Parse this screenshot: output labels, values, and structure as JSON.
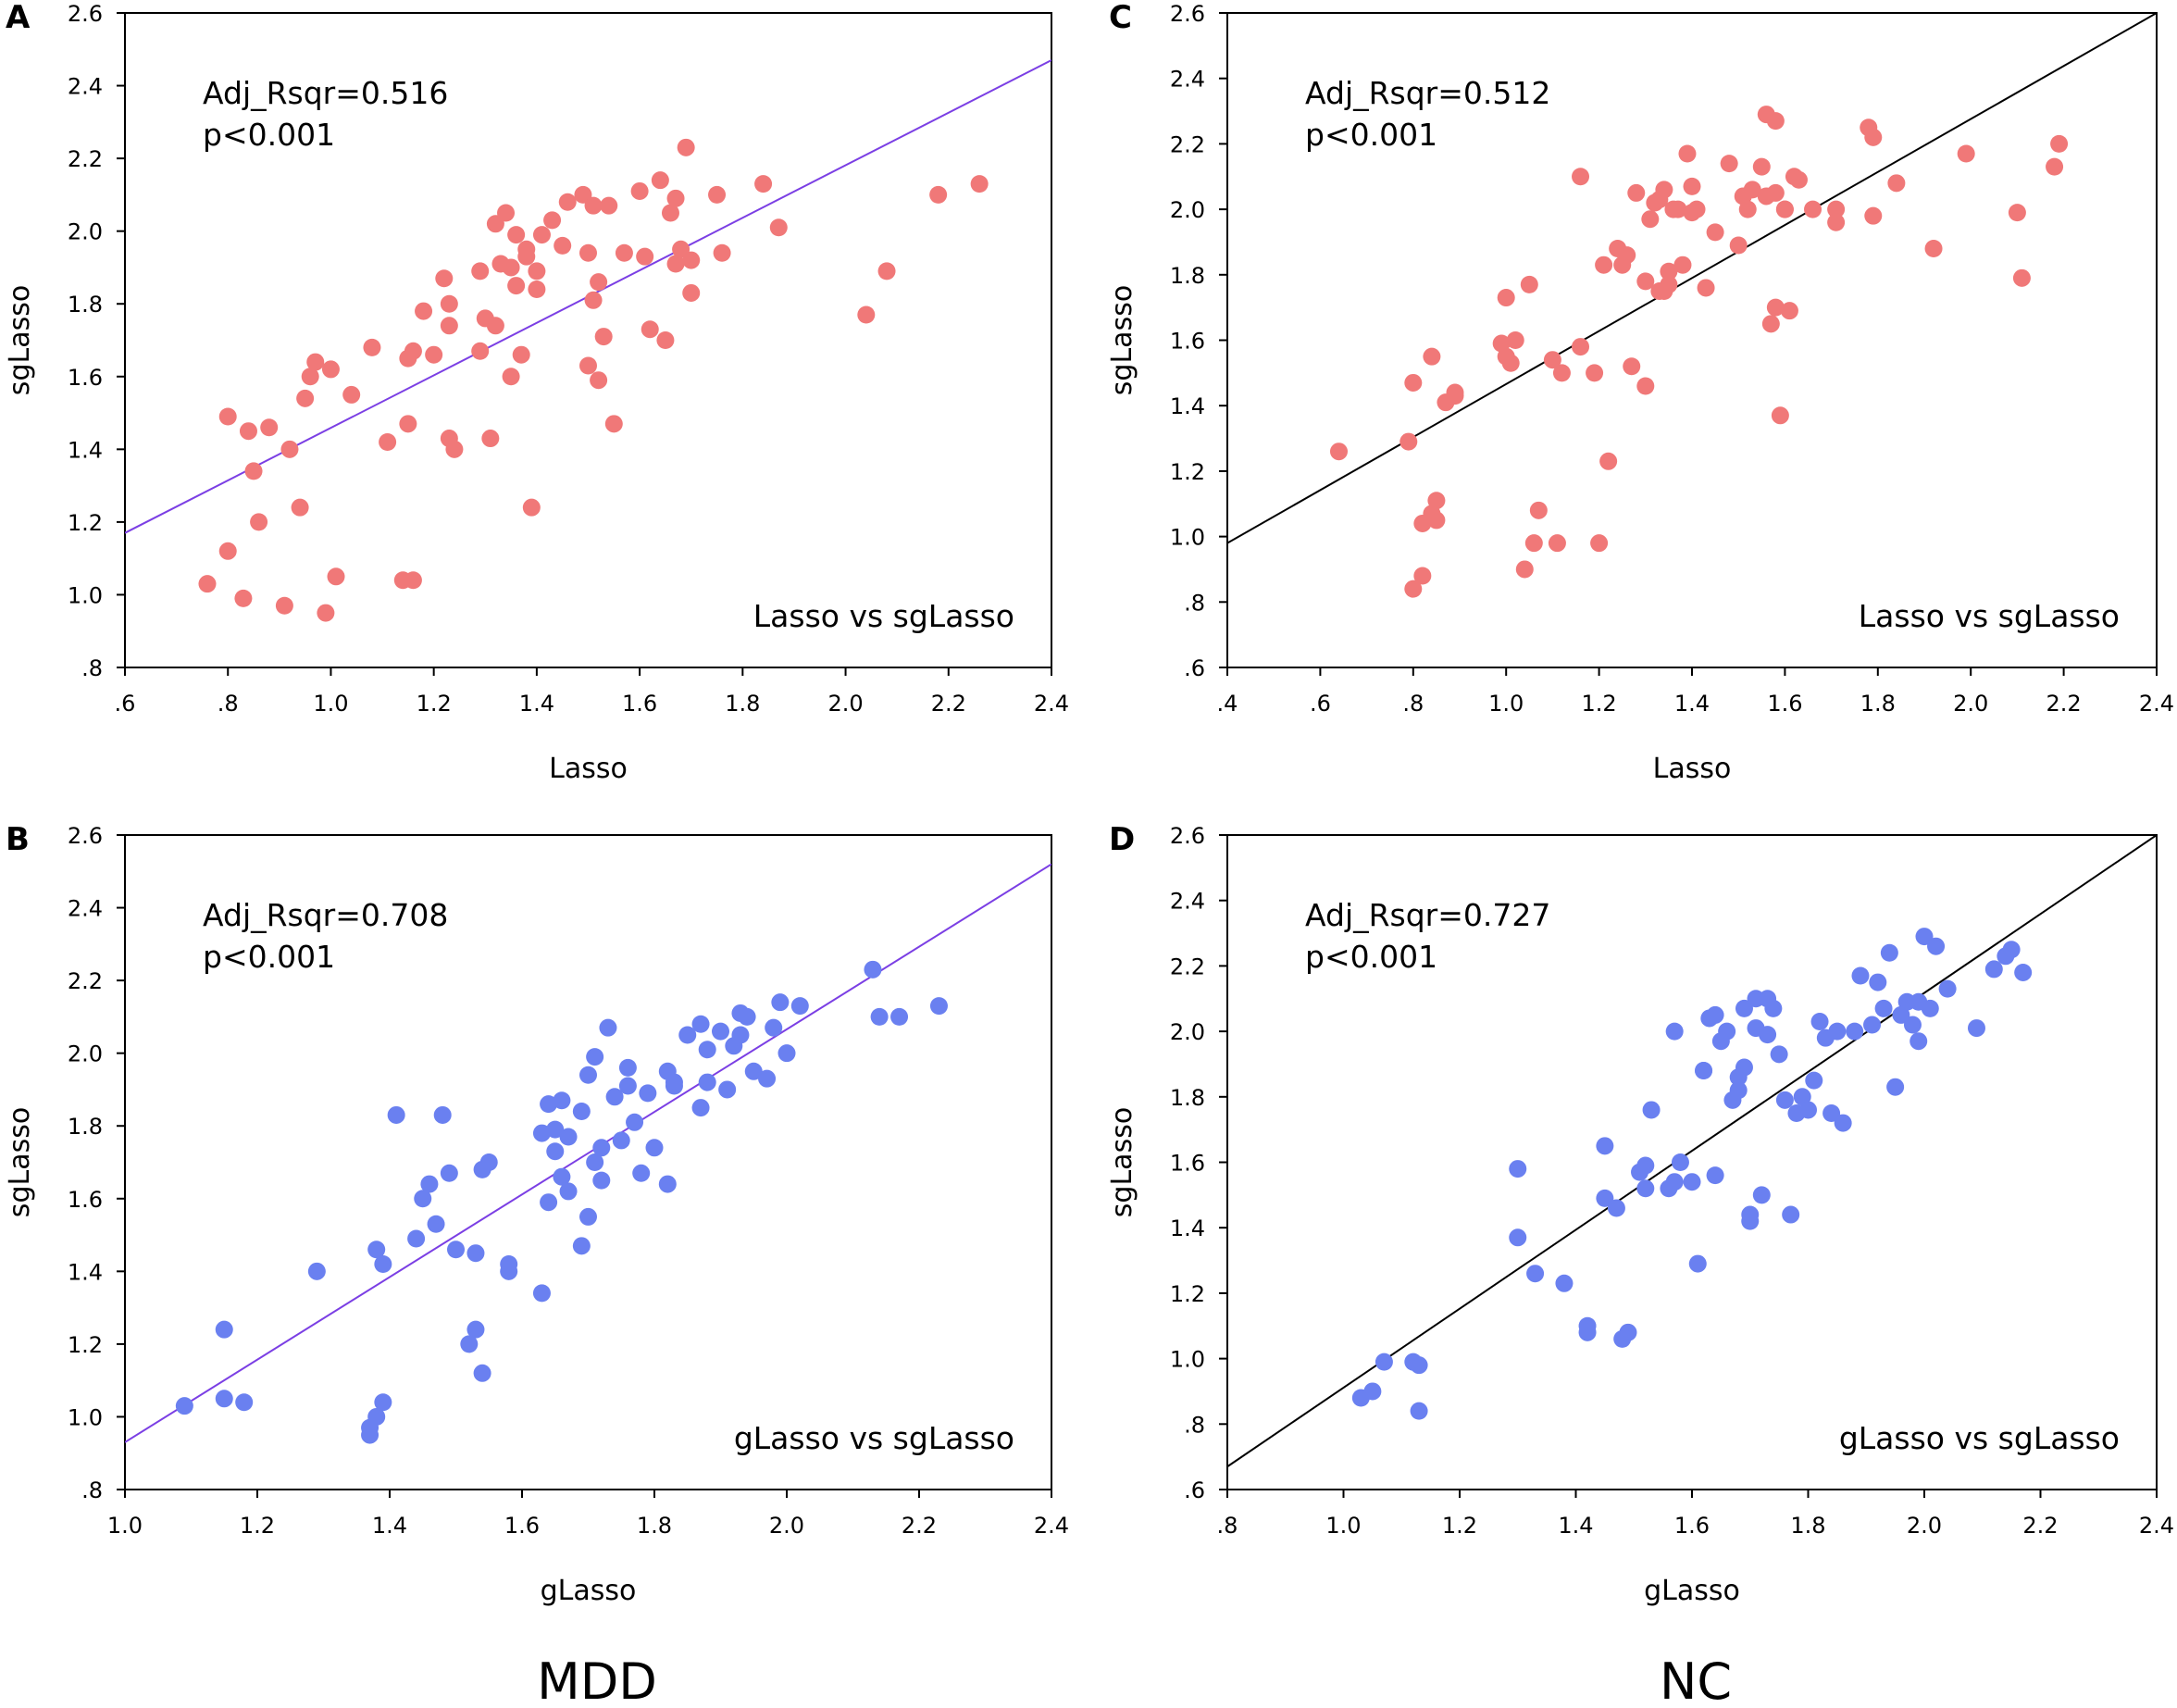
{
  "groups": {
    "left": "MDD",
    "right": "NC"
  },
  "chart_data": [
    {
      "panel": "A",
      "type": "scatter",
      "title": "",
      "xlabel": "Lasso",
      "ylabel": "sgLasso",
      "xlim": [
        0.6,
        2.4
      ],
      "ylim": [
        0.8,
        2.6
      ],
      "xticks": [
        0.6,
        0.8,
        1.0,
        1.2,
        1.4,
        1.6,
        1.8,
        2.0,
        2.2,
        2.4
      ],
      "xtick_labels": [
        ".6",
        ".8",
        "1.0",
        "1.2",
        "1.4",
        "1.6",
        "1.8",
        "2.0",
        "2.2",
        "2.4"
      ],
      "yticks": [
        0.8,
        1.0,
        1.2,
        1.4,
        1.6,
        1.8,
        2.0,
        2.2,
        2.4,
        2.6
      ],
      "ytick_labels": [
        ".8",
        "1.0",
        "1.2",
        "1.4",
        "1.6",
        "1.8",
        "2.0",
        "2.2",
        "2.4",
        "2.6"
      ],
      "stat_line1": "Adj_Rsqr=0.516",
      "stat_line2": "p<0.001",
      "legend": "Lasso vs sgLasso",
      "point_color": "#f07878",
      "line_color": "#7b3fe4",
      "fit_line": [
        [
          0.6,
          1.17
        ],
        [
          2.4,
          2.47
        ]
      ],
      "x": [
        0.76,
        0.8,
        0.8,
        0.83,
        0.84,
        0.85,
        0.86,
        0.88,
        0.91,
        0.92,
        0.94,
        0.95,
        0.96,
        0.97,
        0.99,
        1.0,
        1.01,
        1.04,
        1.08,
        1.11,
        1.14,
        1.15,
        1.15,
        1.16,
        1.16,
        1.18,
        1.2,
        1.22,
        1.23,
        1.23,
        1.23,
        1.24,
        1.29,
        1.29,
        1.3,
        1.31,
        1.32,
        1.32,
        1.33,
        1.34,
        1.35,
        1.35,
        1.36,
        1.36,
        1.37,
        1.38,
        1.38,
        1.39,
        1.4,
        1.4,
        1.41,
        1.43,
        1.45,
        1.46,
        1.49,
        1.5,
        1.5,
        1.51,
        1.51,
        1.52,
        1.52,
        1.53,
        1.54,
        1.55,
        1.57,
        1.6,
        1.61,
        1.62,
        1.64,
        1.65,
        1.66,
        1.67,
        1.67,
        1.68,
        1.69,
        1.7,
        1.7,
        1.75,
        1.76,
        1.84,
        1.87,
        2.04,
        2.08,
        2.18,
        2.26
      ],
      "y": [
        1.03,
        1.49,
        1.12,
        0.99,
        1.45,
        1.34,
        1.2,
        1.46,
        0.97,
        1.4,
        1.24,
        1.54,
        1.6,
        1.64,
        0.95,
        1.62,
        1.05,
        1.55,
        1.68,
        1.42,
        1.04,
        1.47,
        1.65,
        1.67,
        1.04,
        1.78,
        1.66,
        1.87,
        1.8,
        1.74,
        1.43,
        1.4,
        1.67,
        1.89,
        1.76,
        1.43,
        1.74,
        2.02,
        1.91,
        2.05,
        1.9,
        1.6,
        1.85,
        1.99,
        1.66,
        1.93,
        1.95,
        1.24,
        1.84,
        1.89,
        1.99,
        2.03,
        1.96,
        2.08,
        2.1,
        1.94,
        1.63,
        2.07,
        1.81,
        1.59,
        1.86,
        1.71,
        2.07,
        1.47,
        1.94,
        2.11,
        1.93,
        1.73,
        2.14,
        1.7,
        2.05,
        2.09,
        1.91,
        1.95,
        2.23,
        1.92,
        1.83,
        2.1,
        1.94,
        2.13,
        2.01,
        1.77,
        1.89,
        2.1,
        2.13
      ]
    },
    {
      "panel": "B",
      "type": "scatter",
      "title": "",
      "xlabel": "gLasso",
      "ylabel": "sgLasso",
      "xlim": [
        1.0,
        2.4
      ],
      "ylim": [
        0.8,
        2.6
      ],
      "xticks": [
        1.0,
        1.2,
        1.4,
        1.6,
        1.8,
        2.0,
        2.2,
        2.4
      ],
      "xtick_labels": [
        "1.0",
        "1.2",
        "1.4",
        "1.6",
        "1.8",
        "2.0",
        "2.2",
        "2.4"
      ],
      "yticks": [
        0.8,
        1.0,
        1.2,
        1.4,
        1.6,
        1.8,
        2.0,
        2.2,
        2.4,
        2.6
      ],
      "ytick_labels": [
        ".8",
        "1.0",
        "1.2",
        "1.4",
        "1.6",
        "1.8",
        "2.0",
        "2.2",
        "2.4",
        "2.6"
      ],
      "stat_line1": "Adj_Rsqr=0.708",
      "stat_line2": "p<0.001",
      "legend": "gLasso vs sgLasso",
      "point_color": "#6a80f0",
      "line_color": "#7b3fe4",
      "fit_line": [
        [
          1.0,
          0.93
        ],
        [
          2.4,
          2.52
        ]
      ],
      "x": [
        1.09,
        1.15,
        1.15,
        1.18,
        1.29,
        1.37,
        1.37,
        1.38,
        1.38,
        1.39,
        1.39,
        1.41,
        1.44,
        1.45,
        1.46,
        1.47,
        1.48,
        1.49,
        1.5,
        1.52,
        1.53,
        1.53,
        1.54,
        1.54,
        1.55,
        1.58,
        1.58,
        1.63,
        1.63,
        1.64,
        1.64,
        1.65,
        1.65,
        1.66,
        1.66,
        1.67,
        1.67,
        1.69,
        1.69,
        1.7,
        1.7,
        1.71,
        1.71,
        1.72,
        1.72,
        1.73,
        1.74,
        1.75,
        1.76,
        1.76,
        1.77,
        1.78,
        1.79,
        1.8,
        1.82,
        1.82,
        1.83,
        1.83,
        1.85,
        1.87,
        1.87,
        1.88,
        1.88,
        1.9,
        1.91,
        1.92,
        1.93,
        1.93,
        1.94,
        1.95,
        1.97,
        1.98,
        1.99,
        2.0,
        2.02,
        2.13,
        2.14,
        2.17,
        2.23
      ],
      "y": [
        1.03,
        1.05,
        1.24,
        1.04,
        1.4,
        0.97,
        0.95,
        1.46,
        1.0,
        1.42,
        1.04,
        1.83,
        1.49,
        1.6,
        1.64,
        1.53,
        1.83,
        1.67,
        1.46,
        1.2,
        1.45,
        1.24,
        1.68,
        1.12,
        1.7,
        1.42,
        1.4,
        1.78,
        1.34,
        1.59,
        1.86,
        1.79,
        1.73,
        1.87,
        1.66,
        1.62,
        1.77,
        1.84,
        1.47,
        1.94,
        1.55,
        1.7,
        1.99,
        1.74,
        1.65,
        2.07,
        1.88,
        1.76,
        1.91,
        1.96,
        1.81,
        1.67,
        1.89,
        1.74,
        1.64,
        1.95,
        1.91,
        1.92,
        2.05,
        1.85,
        2.08,
        1.92,
        2.01,
        2.06,
        1.9,
        2.02,
        2.05,
        2.11,
        2.1,
        1.95,
        1.93,
        2.07,
        2.14,
        2.0,
        2.13,
        2.23,
        2.1,
        2.1,
        2.13
      ]
    },
    {
      "panel": "C",
      "type": "scatter",
      "title": "",
      "xlabel": "Lasso",
      "ylabel": "sgLasso",
      "xlim": [
        0.4,
        2.4
      ],
      "ylim": [
        0.6,
        2.6
      ],
      "xticks": [
        0.4,
        0.6,
        0.8,
        1.0,
        1.2,
        1.4,
        1.6,
        1.8,
        2.0,
        2.2,
        2.4
      ],
      "xtick_labels": [
        ".4",
        ".6",
        ".8",
        "1.0",
        "1.2",
        "1.4",
        "1.6",
        "1.8",
        "2.0",
        "2.2",
        "2.4"
      ],
      "yticks": [
        0.6,
        0.8,
        1.0,
        1.2,
        1.4,
        1.6,
        1.8,
        2.0,
        2.2,
        2.4,
        2.6
      ],
      "ytick_labels": [
        ".6",
        ".8",
        "1.0",
        "1.2",
        "1.4",
        "1.6",
        "1.8",
        "2.0",
        "2.2",
        "2.4",
        "2.6"
      ],
      "stat_line1": "Adj_Rsqr=0.512",
      "stat_line2": "p<0.001",
      "legend": "Lasso vs sgLasso",
      "point_color": "#f07878",
      "line_color": "#000000",
      "fit_line": [
        [
          0.4,
          0.98
        ],
        [
          2.4,
          2.6
        ]
      ],
      "x": [
        0.64,
        0.79,
        0.8,
        0.8,
        0.82,
        0.82,
        0.84,
        0.84,
        0.85,
        0.85,
        0.87,
        0.89,
        0.89,
        0.99,
        1.0,
        1.0,
        1.01,
        1.02,
        1.04,
        1.05,
        1.06,
        1.07,
        1.1,
        1.11,
        1.12,
        1.16,
        1.16,
        1.19,
        1.2,
        1.21,
        1.22,
        1.24,
        1.25,
        1.26,
        1.27,
        1.28,
        1.3,
        1.31,
        1.32,
        1.33,
        1.33,
        1.34,
        1.35,
        1.35,
        1.36,
        1.37,
        1.38,
        1.39,
        1.4,
        1.4,
        1.41,
        1.43,
        1.45,
        1.48,
        1.5,
        1.51,
        1.52,
        1.53,
        1.55,
        1.56,
        1.56,
        1.57,
        1.58,
        1.58,
        1.59,
        1.6,
        1.61,
        1.62,
        1.63,
        1.66,
        1.71,
        1.71,
        1.78,
        1.79,
        1.79,
        1.84,
        1.92,
        1.99,
        2.1,
        2.11,
        2.18,
        2.19,
        1.3,
        1.34,
        1.6,
        1.58
      ],
      "y": [
        1.26,
        1.29,
        0.84,
        1.47,
        0.88,
        1.04,
        1.07,
        1.55,
        1.05,
        1.11,
        1.41,
        1.43,
        1.44,
        1.59,
        1.73,
        1.55,
        1.53,
        1.6,
        0.9,
        1.77,
        0.98,
        1.08,
        1.54,
        0.98,
        1.5,
        2.1,
        1.58,
        1.5,
        0.98,
        1.83,
        1.23,
        1.88,
        1.83,
        1.86,
        1.52,
        2.05,
        1.46,
        1.97,
        2.02,
        1.75,
        2.03,
        2.06,
        1.81,
        1.77,
        2.0,
        2.0,
        1.83,
        2.17,
        1.99,
        2.07,
        2.0,
        1.76,
        1.93,
        2.14,
        1.89,
        2.04,
        2.0,
        2.06,
        2.13,
        2.29,
        2.04,
        1.65,
        2.05,
        2.27,
        1.37,
        2.0,
        1.69,
        2.1,
        2.09,
        2.0,
        2.0,
        1.96,
        2.25,
        2.22,
        1.98,
        2.08,
        1.88,
        2.17,
        1.99,
        1.79,
        2.13,
        2.2,
        1.78,
        1.75,
        2.0,
        1.7
      ]
    },
    {
      "panel": "D",
      "type": "scatter",
      "title": "",
      "xlabel": "gLasso",
      "ylabel": "sgLasso",
      "xlim": [
        0.8,
        2.4
      ],
      "ylim": [
        0.6,
        2.6
      ],
      "xticks": [
        0.8,
        1.0,
        1.2,
        1.4,
        1.6,
        1.8,
        2.0,
        2.2,
        2.4
      ],
      "xtick_labels": [
        ".8",
        "1.0",
        "1.2",
        "1.4",
        "1.6",
        "1.8",
        "2.0",
        "2.2",
        "2.4"
      ],
      "yticks": [
        0.6,
        0.8,
        1.0,
        1.2,
        1.4,
        1.6,
        1.8,
        2.0,
        2.2,
        2.4,
        2.6
      ],
      "ytick_labels": [
        ".6",
        ".8",
        "1.0",
        "1.2",
        "1.4",
        "1.6",
        "1.8",
        "2.0",
        "2.2",
        "2.4",
        "2.6"
      ],
      "stat_line1": "Adj_Rsqr=0.727",
      "stat_line2": "p<0.001",
      "legend": "gLasso vs sgLasso",
      "point_color": "#6a80f0",
      "line_color": "#000000",
      "fit_line": [
        [
          0.8,
          0.67
        ],
        [
          2.4,
          2.6
        ]
      ],
      "x": [
        1.03,
        1.05,
        1.07,
        1.12,
        1.13,
        1.13,
        1.3,
        1.3,
        1.33,
        1.38,
        1.42,
        1.42,
        1.45,
        1.45,
        1.47,
        1.48,
        1.49,
        1.51,
        1.52,
        1.52,
        1.53,
        1.56,
        1.57,
        1.57,
        1.6,
        1.61,
        1.62,
        1.62,
        1.63,
        1.64,
        1.64,
        1.65,
        1.66,
        1.67,
        1.68,
        1.69,
        1.69,
        1.7,
        1.7,
        1.71,
        1.71,
        1.72,
        1.73,
        1.73,
        1.74,
        1.75,
        1.76,
        1.77,
        1.78,
        1.79,
        1.8,
        1.81,
        1.82,
        1.83,
        1.84,
        1.85,
        1.86,
        1.88,
        1.89,
        1.91,
        1.92,
        1.93,
        1.95,
        1.96,
        1.97,
        1.98,
        1.99,
        2.0,
        2.01,
        2.02,
        2.04,
        2.09,
        2.12,
        2.14,
        2.15,
        2.17,
        1.68,
        1.58,
        1.94,
        1.99
      ],
      "y": [
        0.88,
        0.9,
        0.99,
        0.99,
        0.98,
        0.84,
        1.37,
        1.58,
        1.26,
        1.23,
        1.1,
        1.08,
        1.49,
        1.65,
        1.46,
        1.06,
        1.08,
        1.57,
        1.52,
        1.59,
        1.76,
        1.52,
        2.0,
        1.54,
        1.54,
        1.29,
        1.88,
        1.88,
        2.04,
        2.05,
        1.56,
        1.97,
        2.0,
        1.79,
        1.82,
        2.07,
        1.89,
        1.42,
        1.44,
        2.01,
        2.1,
        1.5,
        2.1,
        1.99,
        2.07,
        1.93,
        1.79,
        1.44,
        1.75,
        1.8,
        1.76,
        1.85,
        2.03,
        1.98,
        1.75,
        2.0,
        1.72,
        2.0,
        2.17,
        2.02,
        2.15,
        2.07,
        1.83,
        2.05,
        2.09,
        2.02,
        1.97,
        2.29,
        2.07,
        2.26,
        2.13,
        2.01,
        2.19,
        2.23,
        2.25,
        2.18,
        1.86,
        1.6,
        2.24,
        2.09
      ]
    }
  ]
}
